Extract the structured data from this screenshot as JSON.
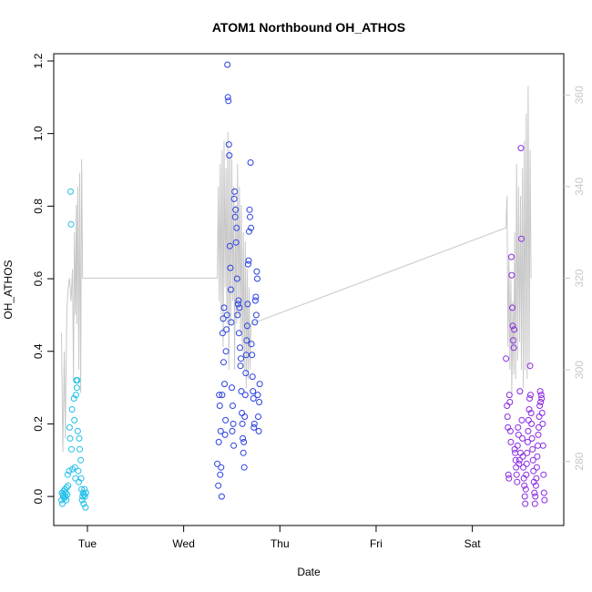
{
  "chart_data": {
    "type": "scatter",
    "title": "ATOM1 Northbound OH_ATHOS",
    "xlabel": "Date",
    "ylabel": "OH_ATHOS",
    "xlim": [
      0.65,
      5.95
    ],
    "ylim": [
      -0.08,
      1.22
    ],
    "y2lim": [
      266,
      369
    ],
    "x_ticks": [
      {
        "value": 1,
        "label": "Tue"
      },
      {
        "value": 2,
        "label": "Wed"
      },
      {
        "value": 3,
        "label": "Thu"
      },
      {
        "value": 4,
        "label": "Fri"
      },
      {
        "value": 5,
        "label": "Sat"
      }
    ],
    "y_ticks": [
      0.0,
      0.2,
      0.4,
      0.6,
      0.8,
      1.0,
      1.2
    ],
    "y_tick_labels": [
      "0.0",
      "0.2",
      "0.4",
      "0.6",
      "0.8",
      "1.0",
      "1.2"
    ],
    "y2_ticks": [
      280,
      300,
      320,
      340,
      360
    ],
    "y2_tick_labels": [
      "280",
      "300",
      "320",
      "340",
      "360"
    ],
    "grid": false,
    "series": [
      {
        "color": "#1fbfe8",
        "points": [
          [
            0.73,
            -0.01
          ],
          [
            0.735,
            0.01
          ],
          [
            0.74,
            -0.02
          ],
          [
            0.745,
            0.005
          ],
          [
            0.75,
            0.0
          ],
          [
            0.755,
            0.015
          ],
          [
            0.76,
            -0.005
          ],
          [
            0.765,
            0.02
          ],
          [
            0.77,
            0.0
          ],
          [
            0.775,
            0.01
          ],
          [
            0.78,
            -0.01
          ],
          [
            0.785,
            0.025
          ],
          [
            0.79,
            0.005
          ],
          [
            0.795,
            0.06
          ],
          [
            0.8,
            0.03
          ],
          [
            0.81,
            0.07
          ],
          [
            0.815,
            0.19
          ],
          [
            0.82,
            0.16
          ],
          [
            0.825,
            0.84
          ],
          [
            0.83,
            0.75
          ],
          [
            0.835,
            0.13
          ],
          [
            0.84,
            0.24
          ],
          [
            0.845,
            0.075
          ],
          [
            0.86,
            0.27
          ],
          [
            0.865,
            0.21
          ],
          [
            0.87,
            0.08
          ],
          [
            0.875,
            0.05
          ],
          [
            0.88,
            0.28
          ],
          [
            0.885,
            0.32
          ],
          [
            0.89,
            0.3
          ],
          [
            0.895,
            0.32
          ],
          [
            0.9,
            0.18
          ],
          [
            0.905,
            0.07
          ],
          [
            0.91,
            0.04
          ],
          [
            0.915,
            0.16
          ],
          [
            0.92,
            0.13
          ],
          [
            0.93,
            0.1
          ],
          [
            0.935,
            0.05
          ],
          [
            0.94,
            0.02
          ],
          [
            0.945,
            -0.01
          ],
          [
            0.95,
            0.0
          ],
          [
            0.955,
            0.01
          ],
          [
            0.96,
            -0.02
          ],
          [
            0.965,
            0.005
          ],
          [
            0.97,
            0.02
          ],
          [
            0.975,
            0.0
          ],
          [
            0.98,
            -0.03
          ],
          [
            0.985,
            0.01
          ]
        ]
      },
      {
        "color": "#2a42e0",
        "points": [
          [
            2.35,
            0.09
          ],
          [
            2.36,
            0.03
          ],
          [
            2.365,
            0.15
          ],
          [
            2.37,
            0.28
          ],
          [
            2.375,
            0.25
          ],
          [
            2.38,
            0.06
          ],
          [
            2.385,
            0.18
          ],
          [
            2.39,
            0.08
          ],
          [
            2.395,
            0.0
          ],
          [
            2.4,
            0.28
          ],
          [
            2.405,
            0.45
          ],
          [
            2.41,
            0.49
          ],
          [
            2.415,
            0.37
          ],
          [
            2.42,
            0.52
          ],
          [
            2.425,
            0.31
          ],
          [
            2.43,
            0.17
          ],
          [
            2.435,
            0.21
          ],
          [
            2.44,
            0.4
          ],
          [
            2.445,
            0.46
          ],
          [
            2.45,
            0.5
          ],
          [
            2.455,
            1.19
          ],
          [
            2.46,
            1.1
          ],
          [
            2.465,
            1.09
          ],
          [
            2.47,
            0.97
          ],
          [
            2.475,
            0.94
          ],
          [
            2.48,
            0.69
          ],
          [
            2.485,
            0.63
          ],
          [
            2.49,
            0.57
          ],
          [
            2.495,
            0.48
          ],
          [
            2.5,
            0.3
          ],
          [
            2.505,
            0.18
          ],
          [
            2.51,
            0.25
          ],
          [
            2.515,
            0.2
          ],
          [
            2.52,
            0.14
          ],
          [
            2.525,
            0.82
          ],
          [
            2.53,
            0.84
          ],
          [
            2.535,
            0.77
          ],
          [
            2.54,
            0.79
          ],
          [
            2.545,
            0.7
          ],
          [
            2.55,
            0.74
          ],
          [
            2.555,
            0.6
          ],
          [
            2.56,
            0.5
          ],
          [
            2.565,
            0.53
          ],
          [
            2.57,
            0.54
          ],
          [
            2.575,
            0.45
          ],
          [
            2.58,
            0.52
          ],
          [
            2.585,
            0.41
          ],
          [
            2.59,
            0.36
          ],
          [
            2.595,
            0.38
          ],
          [
            2.6,
            0.29
          ],
          [
            2.605,
            0.23
          ],
          [
            2.61,
            0.2
          ],
          [
            2.615,
            0.16
          ],
          [
            2.62,
            0.12
          ],
          [
            2.625,
            0.15
          ],
          [
            2.63,
            0.08
          ],
          [
            2.635,
            0.22
          ],
          [
            2.64,
            0.28
          ],
          [
            2.645,
            0.34
          ],
          [
            2.65,
            0.39
          ],
          [
            2.655,
            0.43
          ],
          [
            2.66,
            0.47
          ],
          [
            2.665,
            0.53
          ],
          [
            2.67,
            0.64
          ],
          [
            2.675,
            0.65
          ],
          [
            2.68,
            0.73
          ],
          [
            2.685,
            0.79
          ],
          [
            2.69,
            0.77
          ],
          [
            2.695,
            0.92
          ],
          [
            2.7,
            0.74
          ],
          [
            2.705,
            0.42
          ],
          [
            2.71,
            0.39
          ],
          [
            2.715,
            0.33
          ],
          [
            2.72,
            0.29
          ],
          [
            2.725,
            0.27
          ],
          [
            2.73,
            0.19
          ],
          [
            2.735,
            0.2
          ],
          [
            2.74,
            0.48
          ],
          [
            2.745,
            0.54
          ],
          [
            2.75,
            0.55
          ],
          [
            2.755,
            0.5
          ],
          [
            2.76,
            0.62
          ],
          [
            2.765,
            0.6
          ],
          [
            2.77,
            0.28
          ],
          [
            2.775,
            0.22
          ],
          [
            2.78,
            0.18
          ],
          [
            2.785,
            0.26
          ],
          [
            2.79,
            0.31
          ]
        ]
      },
      {
        "color": "#8a2be2",
        "points": [
          [
            5.35,
            0.38
          ],
          [
            5.36,
            0.25
          ],
          [
            5.365,
            0.22
          ],
          [
            5.37,
            0.19
          ],
          [
            5.375,
            0.06
          ],
          [
            5.38,
            0.05
          ],
          [
            5.385,
            0.28
          ],
          [
            5.39,
            0.26
          ],
          [
            5.395,
            0.18
          ],
          [
            5.4,
            0.15
          ],
          [
            5.405,
            0.66
          ],
          [
            5.41,
            0.61
          ],
          [
            5.415,
            0.52
          ],
          [
            5.42,
            0.47
          ],
          [
            5.425,
            0.43
          ],
          [
            5.43,
            0.41
          ],
          [
            5.435,
            0.46
          ],
          [
            5.44,
            0.13
          ],
          [
            5.445,
            0.12
          ],
          [
            5.45,
            0.1
          ],
          [
            5.455,
            0.08
          ],
          [
            5.46,
            0.06
          ],
          [
            5.465,
            0.04
          ],
          [
            5.47,
            0.14
          ],
          [
            5.475,
            0.19
          ],
          [
            5.48,
            0.17
          ],
          [
            5.485,
            0.09
          ],
          [
            5.49,
            0.1
          ],
          [
            5.495,
            0.29
          ],
          [
            5.5,
            0.12
          ],
          [
            5.505,
            0.96
          ],
          [
            5.51,
            0.71
          ],
          [
            5.515,
            0.21
          ],
          [
            5.52,
            0.16
          ],
          [
            5.525,
            0.11
          ],
          [
            5.53,
            0.08
          ],
          [
            5.535,
            0.05
          ],
          [
            5.54,
            0.03
          ],
          [
            5.545,
            0.0
          ],
          [
            5.55,
            -0.02
          ],
          [
            5.555,
            0.02
          ],
          [
            5.56,
            0.06
          ],
          [
            5.565,
            0.09
          ],
          [
            5.57,
            0.12
          ],
          [
            5.575,
            0.15
          ],
          [
            5.58,
            0.18
          ],
          [
            5.585,
            0.21
          ],
          [
            5.59,
            0.24
          ],
          [
            5.595,
            0.27
          ],
          [
            5.6,
            0.36
          ],
          [
            5.605,
            0.28
          ],
          [
            5.61,
            0.23
          ],
          [
            5.615,
            0.2
          ],
          [
            5.62,
            0.16
          ],
          [
            5.625,
            0.13
          ],
          [
            5.63,
            0.1
          ],
          [
            5.635,
            0.07
          ],
          [
            5.64,
            0.04
          ],
          [
            5.645,
            0.01
          ],
          [
            5.65,
            -0.02
          ],
          [
            5.655,
            0.0
          ],
          [
            5.66,
            0.03
          ],
          [
            5.665,
            0.05
          ],
          [
            5.67,
            0.08
          ],
          [
            5.675,
            0.11
          ],
          [
            5.68,
            0.14
          ],
          [
            5.685,
            0.17
          ],
          [
            5.69,
            0.19
          ],
          [
            5.695,
            0.22
          ],
          [
            5.7,
            0.25
          ],
          [
            5.705,
            0.29
          ],
          [
            5.71,
            0.26
          ],
          [
            5.715,
            0.28
          ],
          [
            5.72,
            0.27
          ],
          [
            5.725,
            0.23
          ],
          [
            5.73,
            0.2
          ],
          [
            5.735,
            0.14
          ],
          [
            5.74,
            0.06
          ],
          [
            5.745,
            0.01
          ],
          [
            5.75,
            -0.01
          ]
        ]
      }
    ],
    "line_series": {
      "color": "#c8c8c8",
      "axis": "right",
      "points": [
        [
          0.73,
          308
        ],
        [
          0.745,
          282
        ],
        [
          0.76,
          304
        ],
        [
          0.77,
          285
        ],
        [
          0.785,
          312
        ],
        [
          0.8,
          318
        ],
        [
          0.815,
          320
        ],
        [
          0.83,
          315
        ],
        [
          0.845,
          322
        ],
        [
          0.855,
          298
        ],
        [
          0.865,
          330
        ],
        [
          0.875,
          312
        ],
        [
          0.885,
          336
        ],
        [
          0.89,
          310
        ],
        [
          0.9,
          340
        ],
        [
          0.91,
          300
        ],
        [
          0.92,
          343
        ],
        [
          0.93,
          295
        ],
        [
          0.94,
          346
        ],
        [
          0.95,
          320
        ],
        [
          2.35,
          320
        ],
        [
          2.36,
          340
        ],
        [
          2.37,
          315
        ],
        [
          2.38,
          345
        ],
        [
          2.39,
          312
        ],
        [
          2.4,
          348
        ],
        [
          2.41,
          305
        ],
        [
          2.42,
          350
        ],
        [
          2.43,
          318
        ],
        [
          2.44,
          344
        ],
        [
          2.45,
          310
        ],
        [
          2.46,
          352
        ],
        [
          2.47,
          300
        ],
        [
          2.48,
          348
        ],
        [
          2.49,
          310
        ],
        [
          2.5,
          346
        ],
        [
          2.51,
          315
        ],
        [
          2.52,
          340
        ],
        [
          2.53,
          300
        ],
        [
          2.54,
          336
        ],
        [
          2.55,
          310
        ],
        [
          2.56,
          345
        ],
        [
          2.57,
          312
        ],
        [
          2.58,
          340
        ],
        [
          2.59,
          308
        ],
        [
          2.6,
          336
        ],
        [
          2.61,
          304
        ],
        [
          2.62,
          330
        ],
        [
          2.63,
          300
        ],
        [
          2.64,
          328
        ],
        [
          2.65,
          296
        ],
        [
          2.66,
          322
        ],
        [
          2.67,
          298
        ],
        [
          2.68,
          318
        ],
        [
          2.69,
          300
        ],
        [
          2.7,
          310
        ],
        [
          5.35,
          331
        ],
        [
          5.36,
          338
        ],
        [
          5.37,
          305
        ],
        [
          5.38,
          325
        ],
        [
          5.39,
          300
        ],
        [
          5.4,
          320
        ],
        [
          5.41,
          295
        ],
        [
          5.42,
          315
        ],
        [
          5.43,
          299
        ],
        [
          5.44,
          330
        ],
        [
          5.45,
          298
        ],
        [
          5.46,
          345
        ],
        [
          5.47,
          302
        ],
        [
          5.48,
          340
        ],
        [
          5.49,
          306
        ],
        [
          5.5,
          338
        ],
        [
          5.51,
          300
        ],
        [
          5.52,
          344
        ],
        [
          5.53,
          296
        ],
        [
          5.54,
          350
        ],
        [
          5.55,
          300
        ],
        [
          5.56,
          356
        ],
        [
          5.57,
          298
        ],
        [
          5.58,
          362
        ],
        [
          5.59,
          300
        ],
        [
          5.6,
          348
        ],
        [
          5.61,
          320
        ]
      ]
    }
  }
}
